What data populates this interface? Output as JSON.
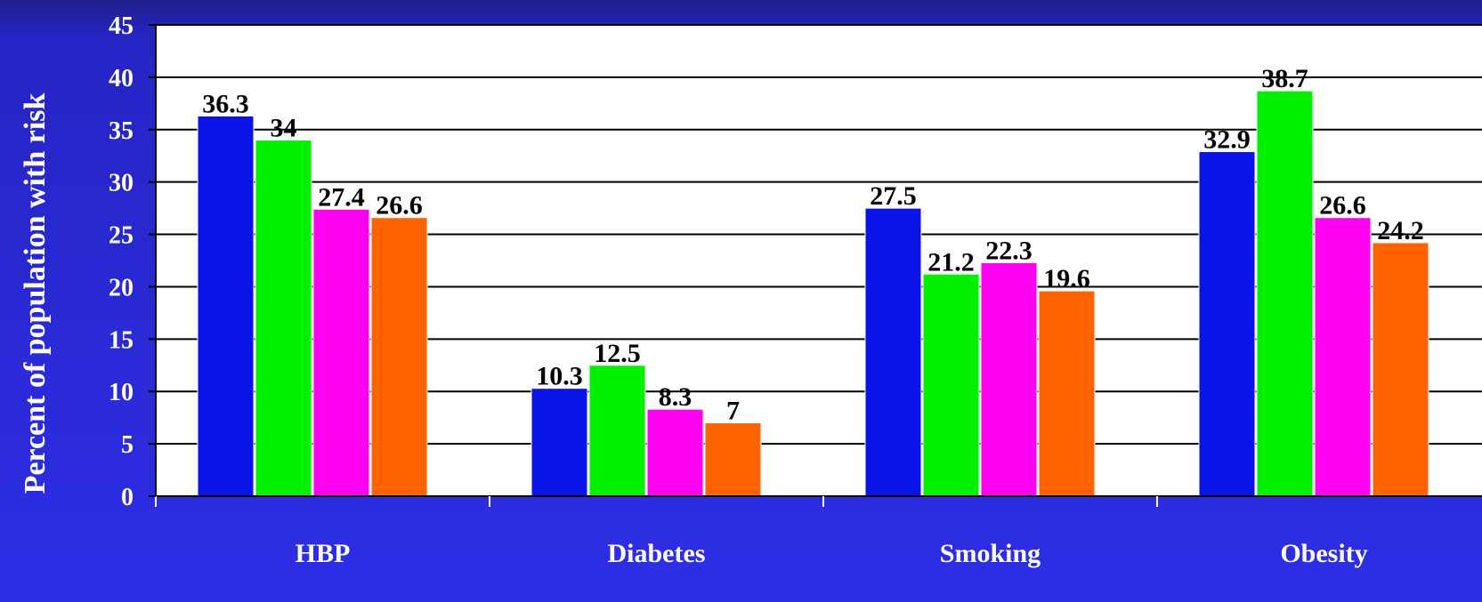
{
  "chart_data": {
    "type": "bar",
    "categories": [
      "HBP",
      "Diabetes",
      "Smoking",
      "Obesity"
    ],
    "series": [
      {
        "values": [
          36.3,
          10.3,
          27.5,
          32.9
        ],
        "color": "#0a14e6"
      },
      {
        "values": [
          34,
          12.5,
          21.2,
          38.7
        ],
        "color": "#00f000"
      },
      {
        "values": [
          27.4,
          8.3,
          22.3,
          26.6
        ],
        "color": "#ff00f0"
      },
      {
        "values": [
          26.6,
          7,
          19.6,
          24.2
        ],
        "color": "#ff6400"
      }
    ],
    "data_labels": [
      [
        "36.3",
        "10.3",
        "27.5",
        "32.9"
      ],
      [
        "34",
        "12.5",
        "21.2",
        "38.7"
      ],
      [
        "27.4",
        "8.3",
        "22.3",
        "26.6"
      ],
      [
        "26.6",
        "7",
        "19.6",
        "24.2"
      ]
    ],
    "yticks": [
      "0",
      "5",
      "10",
      "15",
      "20",
      "25",
      "30",
      "35",
      "40",
      "45"
    ],
    "title": "",
    "xlabel": "",
    "ylabel": "Percent of population with risk",
    "ylim": [
      0,
      45
    ],
    "grid": true,
    "plot_background": "#ffffff",
    "page_background": "#2e2ee6",
    "axis_text_color": "#ffffff"
  }
}
